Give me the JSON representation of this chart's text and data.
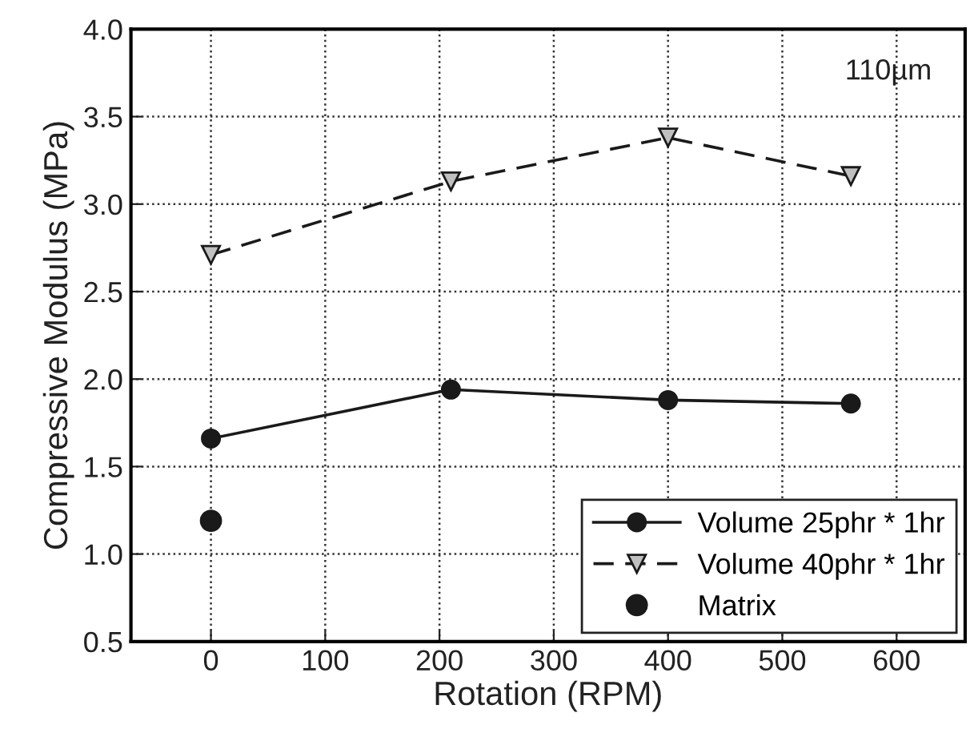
{
  "chart_data": {
    "type": "line",
    "xlabel": "Rotation (RPM)",
    "ylabel": "Compressive Modulus (MPa)",
    "annotations": [
      "110µm"
    ],
    "xlim": [
      -70,
      660
    ],
    "xticks": [
      0,
      100,
      200,
      300,
      400,
      500,
      600
    ],
    "ylim": [
      0.5,
      4.0
    ],
    "yticks": [
      {
        "value": 0.5,
        "label": "0.5"
      },
      {
        "value": 1.0,
        "label": "1.0"
      },
      {
        "value": 1.5,
        "label": "1.5"
      },
      {
        "value": 2.0,
        "label": "2.0"
      },
      {
        "value": 2.5,
        "label": "2.5"
      },
      {
        "value": 3.0,
        "label": "3.0"
      },
      {
        "value": 3.5,
        "label": "3.5"
      },
      {
        "value": 4.0,
        "label": "4.0"
      }
    ],
    "grid": true,
    "legend": "bottom right",
    "series": [
      {
        "name": "Volume 25phr * 1hr",
        "color": "#1a1a1a",
        "x": [
          0,
          210,
          400,
          560
        ],
        "values": [
          1.66,
          1.94,
          1.88,
          1.86
        ],
        "marker": "circle",
        "line_style": "solid"
      },
      {
        "name": "Volume 40phr * 1hr",
        "color": "#1a1a1a",
        "x": [
          0,
          210,
          400,
          560
        ],
        "values": [
          2.71,
          3.13,
          3.38,
          3.16
        ],
        "marker": "triangle",
        "line_style": "dashed"
      },
      {
        "name": "Matrix",
        "type": "scatter",
        "color": "#1a1a1a",
        "x": [
          0
        ],
        "values": [
          1.19
        ],
        "marker": "circle"
      }
    ]
  }
}
